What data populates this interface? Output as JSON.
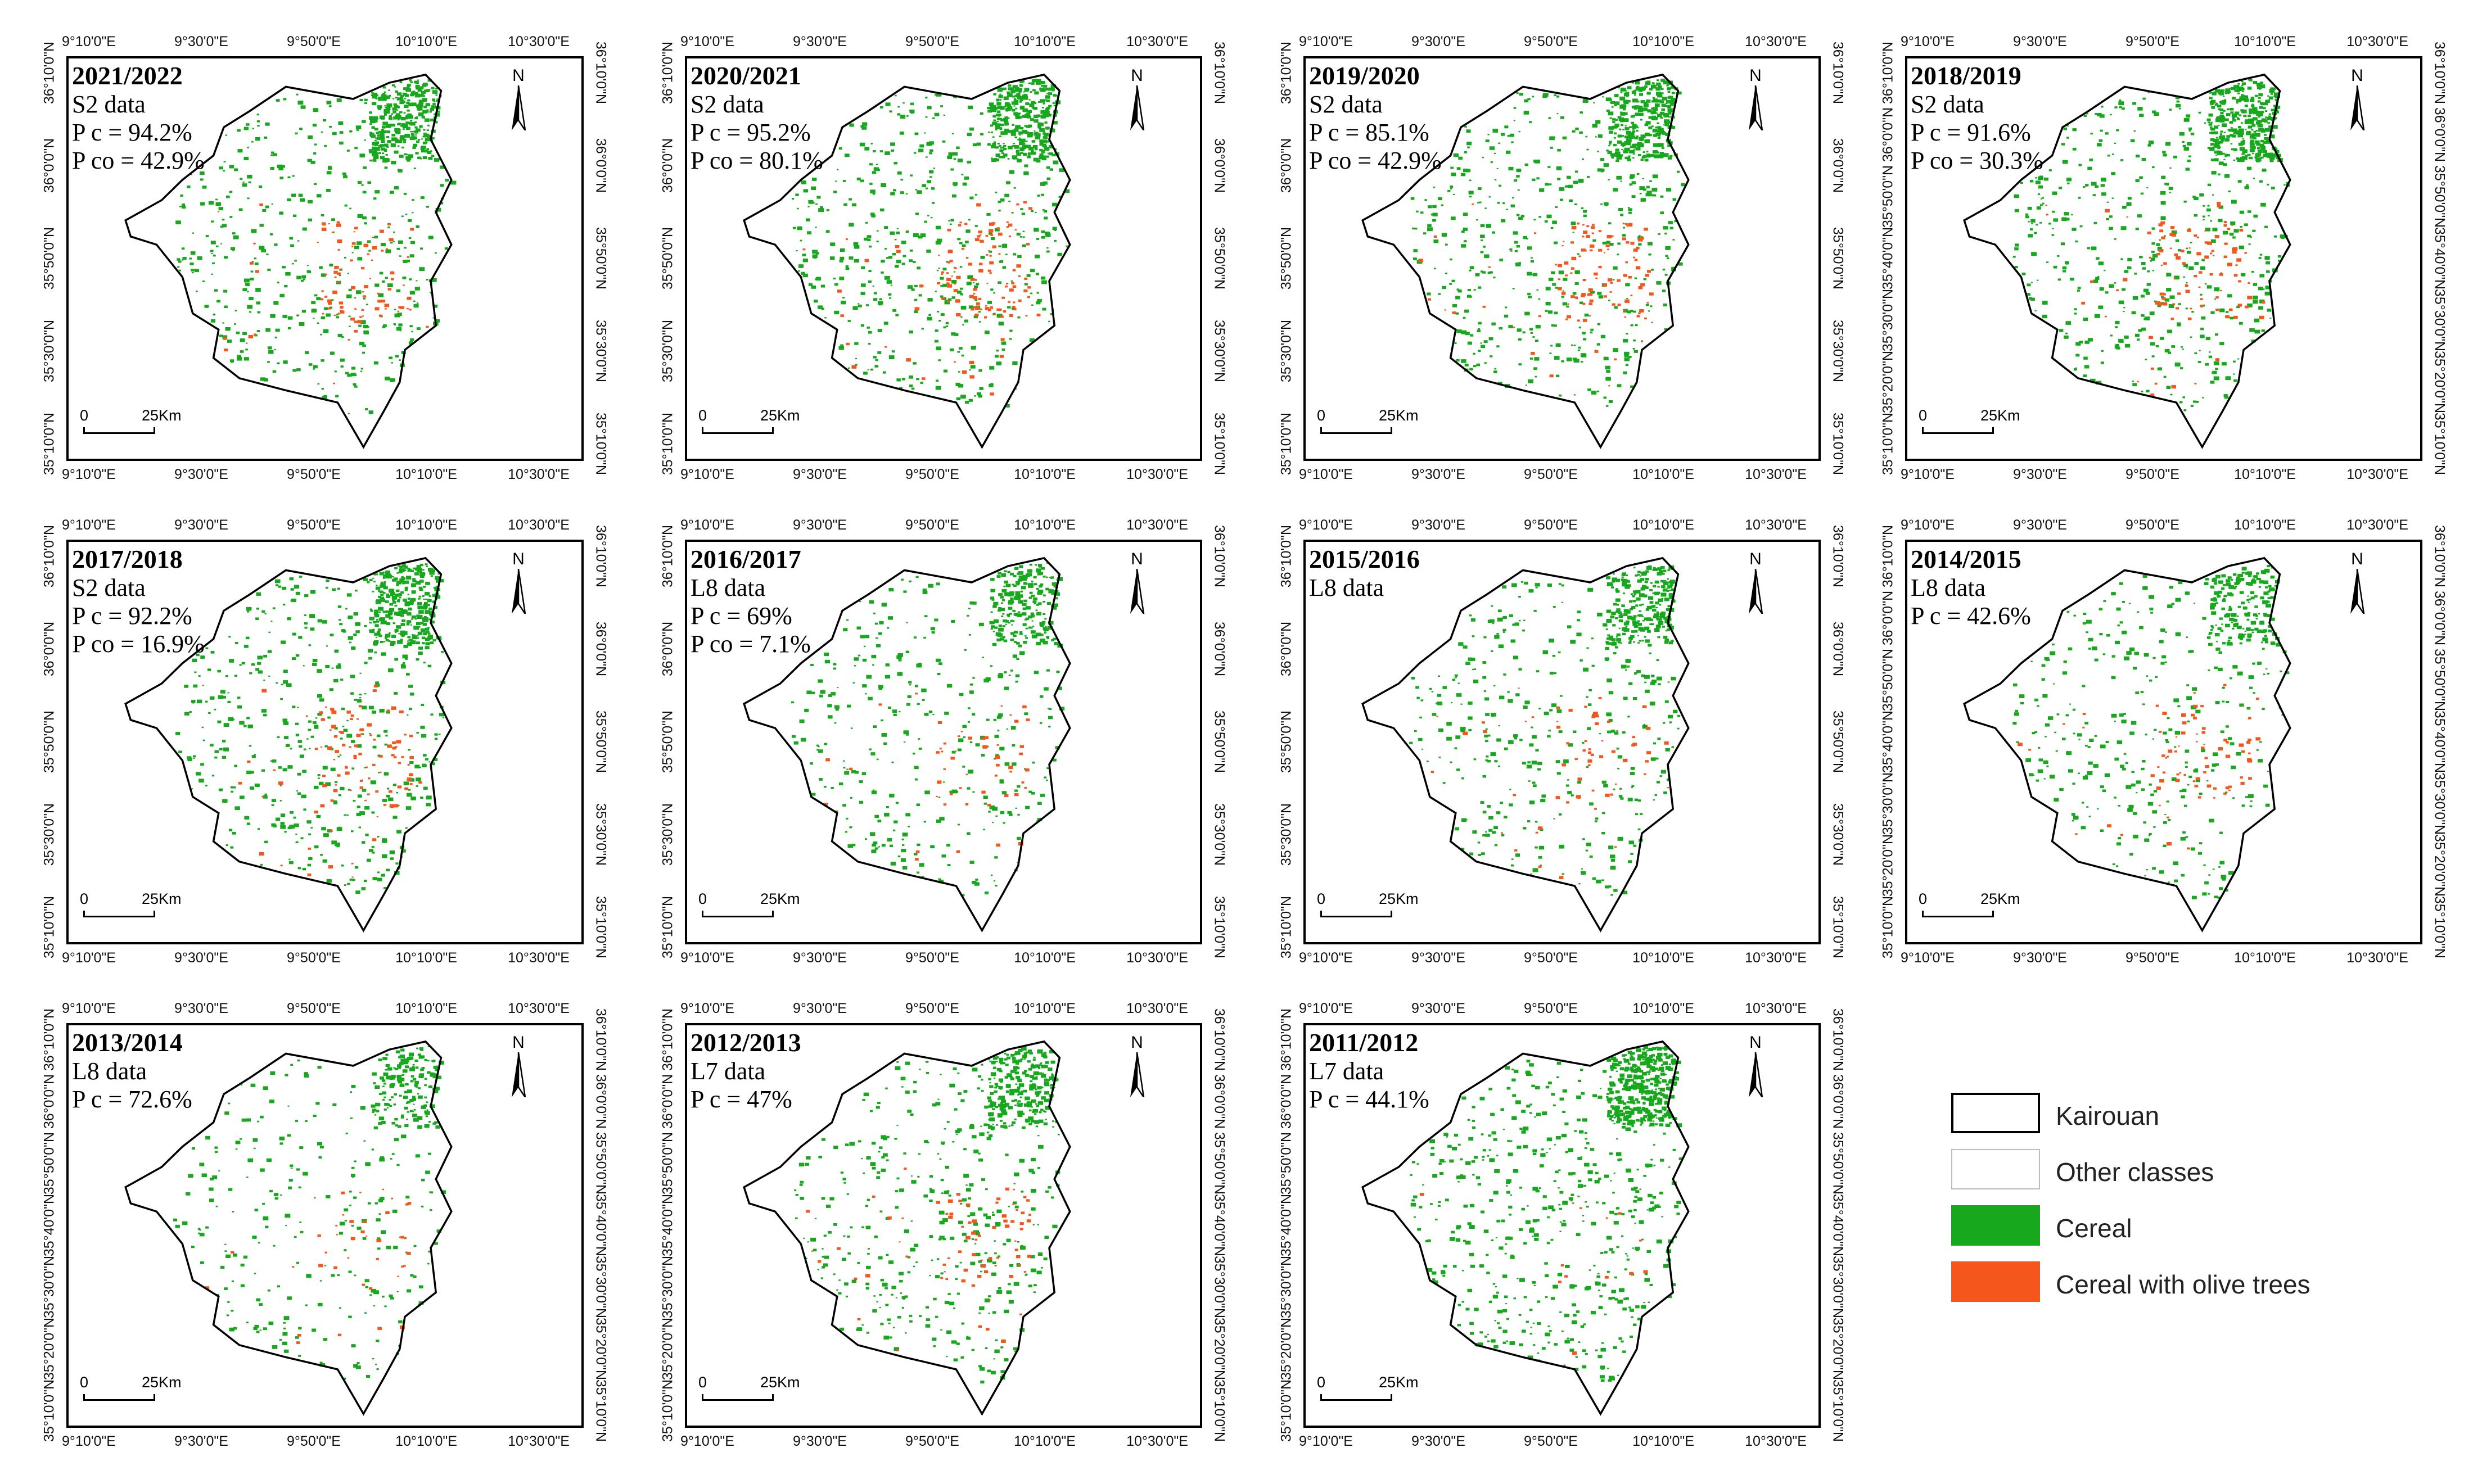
{
  "colors": {
    "cereal": "#17a81d",
    "cereal_with_olive_trees": "#f4561c",
    "other_classes": "#ffffff",
    "boundary": "#000000"
  },
  "legend": [
    {
      "label": "Kairouan",
      "swatch": "boundary"
    },
    {
      "label": "Other classes",
      "swatch": "other"
    },
    {
      "label": "Cereal",
      "swatch": "cereal"
    },
    {
      "label": "Cereal with olive trees",
      "swatch": "olive"
    }
  ],
  "axis_labels": {
    "longitude": [
      "9°10'0\"E",
      "9°30'0\"E",
      "9°50'0\"E",
      "10°10'0\"E",
      "10°30'0\"E"
    ],
    "latitude_a": [
      "36°10'0\"N",
      "36°0'0\"N",
      "35°50'0\"N",
      "35°30'0\"N",
      "35°10'0\"N"
    ],
    "latitude_b": [
      "35°50'0\"N",
      "35°30'0\"N",
      "35°10'0\"N"
    ],
    "latitude_c": [
      "36°10'0\"N",
      "36°0'0\"N",
      "35°50'0\"N",
      "35°40'0\"N",
      "35°30'0\"N",
      "35°20'0\"N",
      "35°10'0\"N"
    ]
  },
  "north_label": "N",
  "scale": {
    "zero": "0",
    "distance": "25Km"
  },
  "maps": [
    {
      "season": "2021/2022",
      "lines": [
        "S2 data",
        "P c = 94.2%",
        "P co = 42.9%"
      ],
      "cereal_density": 0.85,
      "olive_density": 0.35
    },
    {
      "season": "2020/2021",
      "lines": [
        "S2 data",
        "P c = 95.2%",
        "P co = 80.1%"
      ],
      "cereal_density": 0.9,
      "olive_density": 0.5
    },
    {
      "season": "2019/2020",
      "lines": [
        "S2 data",
        "P c = 85.1%",
        "P co = 42.9%"
      ],
      "cereal_density": 0.85,
      "olive_density": 0.45
    },
    {
      "season": "2018/2019",
      "lines": [
        "S2 data",
        "P c = 91.6%",
        "P co = 30.3%"
      ],
      "cereal_density": 0.9,
      "olive_density": 0.4
    },
    {
      "season": "2017/2018",
      "lines": [
        "S2 data",
        "P c = 92.2%",
        "P co = 16.9%"
      ],
      "cereal_density": 0.85,
      "olive_density": 0.4
    },
    {
      "season": "2016/2017",
      "lines": [
        "L8 data",
        "P c = 69%",
        "P co = 7.1%"
      ],
      "cereal_density": 0.6,
      "olive_density": 0.2
    },
    {
      "season": "2015/2016",
      "lines": [
        "L8 data"
      ],
      "cereal_density": 0.65,
      "olive_density": 0.25
    },
    {
      "season": "2014/2015",
      "lines": [
        "L8 data",
        "P c = 42.6%"
      ],
      "cereal_density": 0.55,
      "olive_density": 0.3
    },
    {
      "season": "2013/2014",
      "lines": [
        "L8 data",
        "P c = 72.6%"
      ],
      "cereal_density": 0.45,
      "olive_density": 0.15
    },
    {
      "season": "2012/2013",
      "lines": [
        "L7 data",
        "P c = 47%"
      ],
      "cereal_density": 0.7,
      "olive_density": 0.3
    },
    {
      "season": "2011/2012",
      "lines": [
        "L7 data",
        "P c = 44.1%"
      ],
      "cereal_density": 0.95,
      "olive_density": 0.05
    }
  ]
}
